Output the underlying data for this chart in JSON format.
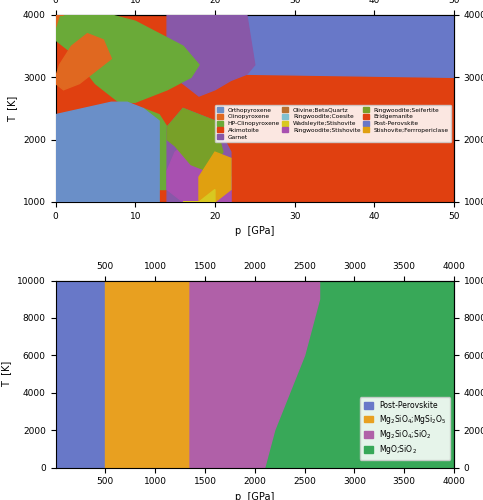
{
  "top": {
    "xlim": [
      0,
      50
    ],
    "ylim": [
      1000,
      4000
    ],
    "xlabel": "p  [GPa]",
    "ylabel": "T  [K]",
    "xticks_bottom": [
      0,
      10,
      20,
      30,
      40,
      50
    ],
    "yticks_left": [
      1000,
      2000,
      3000,
      4000
    ],
    "colors": {
      "orthopyroxene": "#6a8fc8",
      "clinopyroxene": "#e06820",
      "hp_clino": "#6aaa38",
      "akimotoite": "#e04010",
      "garnet": "#8858a8",
      "olivine_bq": "#b87030",
      "ringw_coesite": "#80c0d0",
      "wads_stish": "#d8c820",
      "ringw_stish": "#a850b0",
      "ringw_seif": "#78a028",
      "bridgemanite": "#e04010",
      "post_perov": "#6878c8",
      "stish_ferrop": "#e0a010"
    }
  },
  "bottom": {
    "xlim": [
      0,
      4000
    ],
    "ylim": [
      0,
      10000
    ],
    "xlabel": "p  [GPa]",
    "ylabel": "T  [K]",
    "xticks_bottom": [
      500,
      1000,
      1500,
      2000,
      2500,
      3000,
      3500,
      4000
    ],
    "yticks_left": [
      0,
      2000,
      4000,
      6000,
      8000,
      10000
    ],
    "colors": {
      "post_perov": "#6878c8",
      "mg2sio4_mgsi2o5": "#e8a020",
      "mg2sio4_sio2": "#b060a8",
      "mgo_sio2": "#38a858"
    }
  }
}
